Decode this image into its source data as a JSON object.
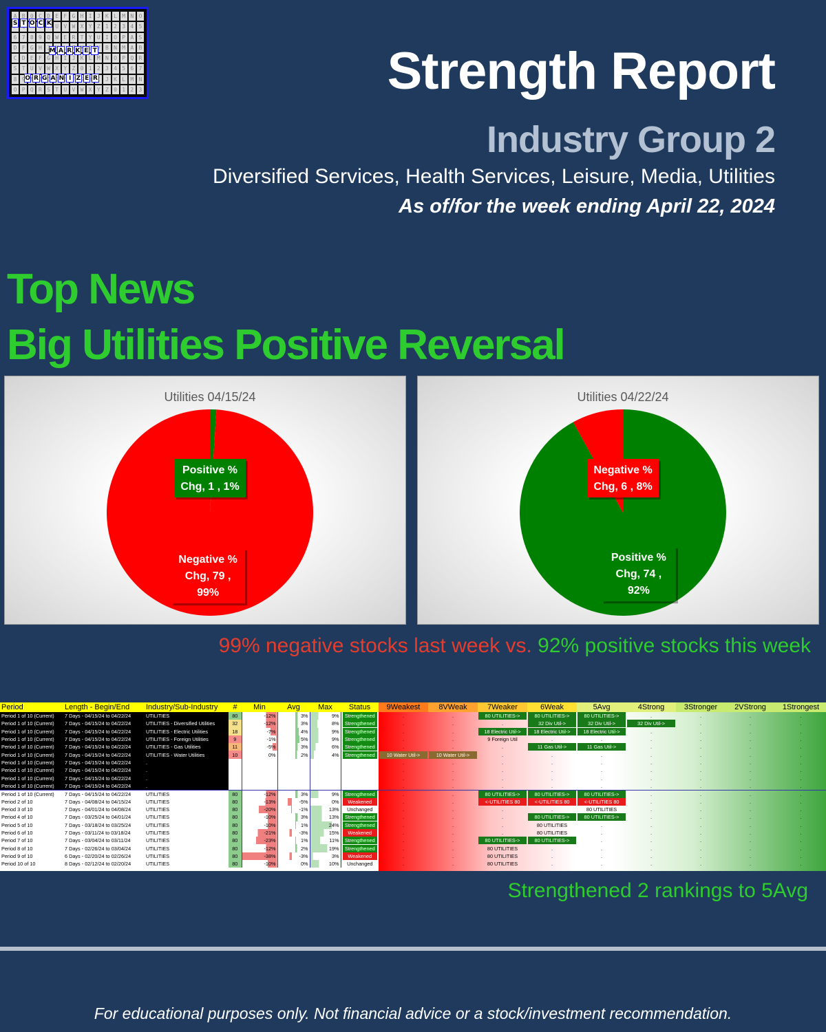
{
  "logo": {
    "words": [
      [
        "S",
        "T",
        "O",
        "C",
        "K"
      ],
      [
        "M",
        "A",
        "R",
        "K",
        "E",
        "T"
      ],
      [
        "O",
        "R",
        "G",
        "A",
        "N",
        "I",
        "Z",
        "E",
        "R"
      ]
    ],
    "filler": "AB0CDEFGHIJKLMNOPQRSTUVWXYZ123456789QWERTYUIOPASDFGHJKLZXCVBNMABCDEFGHIJKLMNOPQRSTUVWXYZ0123456789ABCDEFGHIJKLMNOPQRSTUVWXYZ0123"
  },
  "header": {
    "title": "Strength Report",
    "subtitle": "Industry Group 2",
    "groups": "Diversified Services, Health Services, Leisure, Media, Utilities",
    "as_of": "As of/for the week ending April 22, 2024"
  },
  "news": {
    "label": "Top News",
    "headline": "Big Utilities Positive Reversal"
  },
  "colors": {
    "positive": "#008000",
    "negative": "#ff0000"
  },
  "chart_data": [
    {
      "type": "pie",
      "title": "Utilities 04/15/24",
      "slices": [
        {
          "name": "Positive % Chg",
          "count": 1,
          "percent": 1,
          "color": "#008000",
          "label_lines": [
            "Positive %",
            "Chg,  1 , 1%"
          ]
        },
        {
          "name": "Negative % Chg",
          "count": 79,
          "percent": 99,
          "color": "#ff0000",
          "label_lines": [
            "Negative %",
            "Chg,  79 ,",
            "99%"
          ]
        }
      ]
    },
    {
      "type": "pie",
      "title": "Utilities 04/22/24",
      "slices": [
        {
          "name": "Positive % Chg",
          "count": 74,
          "percent": 92,
          "color": "#008000",
          "label_lines": [
            "Positive %",
            "Chg,  74 ,",
            "92%"
          ]
        },
        {
          "name": "Negative % Chg",
          "count": 6,
          "percent": 8,
          "color": "#ff0000",
          "label_lines": [
            "Negative %",
            "Chg,  6 , 8%"
          ]
        }
      ]
    }
  ],
  "comparison": {
    "negative": "99% negative stocks last week vs.",
    "positive": "92% positive stocks this week"
  },
  "table": {
    "headers": [
      "Period",
      "Length - Begin/End",
      "Industry/Sub-Industry",
      "#",
      "Min",
      "Avg",
      "Max",
      "Status",
      "9Weakest",
      "8VWeak",
      "7Weaker",
      "6Weak",
      "5Avg",
      "4Strong",
      "3Stronger",
      "2VStrong",
      "1Strongest"
    ],
    "rows": [
      {
        "period": "Period 1 of 10 (Current)",
        "length": "7 Days - 04/15/24 to 04/22/24",
        "industry": "UTILITIES",
        "count": "80",
        "min": "-12%",
        "avg": "3%",
        "max": "9%",
        "status": "Strengthened",
        "ranks": [
          "",
          "",
          "80 UTILITIES->",
          "80 UTILITIES->",
          "80 UTILITIES->",
          "",
          "",
          "",
          ""
        ],
        "kinds": [
          "",
          "",
          "g",
          "g",
          "g",
          "",
          "",
          "",
          ""
        ]
      },
      {
        "period": "Period 1 of 10 (Current)",
        "length": "7 Days - 04/15/24 to 04/22/24",
        "industry": "UTILITIES - Diversified Utilities",
        "count": "32",
        "min": "-12%",
        "avg": "3%",
        "max": "8%",
        "status": "Strengthened",
        "ranks": [
          "",
          "",
          "",
          "32 Div Util->",
          "32 Div Util->",
          "32 Div Util->",
          "",
          "",
          ""
        ],
        "kinds": [
          "",
          "",
          "",
          "g",
          "g",
          "g",
          "",
          "",
          ""
        ]
      },
      {
        "period": "Period 1 of 10 (Current)",
        "length": "7 Days - 04/15/24 to 04/22/24",
        "industry": "UTILITIES - Electric Utilities",
        "count": "18",
        "min": "-7%",
        "avg": "4%",
        "max": "9%",
        "status": "Strengthened",
        "ranks": [
          "",
          "",
          "18 Electric Util->",
          "18 Electric Util->",
          "18 Electric Util->",
          "",
          "",
          "",
          ""
        ],
        "kinds": [
          "",
          "",
          "g",
          "g",
          "g",
          "",
          "",
          "",
          ""
        ]
      },
      {
        "period": "Period 1 of 10 (Current)",
        "length": "7 Days - 04/15/24 to 04/22/24",
        "industry": "UTILITIES - Foreign Utilities",
        "count": "9",
        "min": "-1%",
        "avg": "5%",
        "max": "9%",
        "status": "Strengthened",
        "ranks": [
          "",
          "",
          "9 Foreign Util",
          "",
          "",
          "",
          "",
          "",
          ""
        ],
        "kinds": [
          "",
          "",
          "",
          "",
          "",
          "",
          "",
          "",
          ""
        ]
      },
      {
        "period": "Period 1 of 10 (Current)",
        "length": "7 Days - 04/15/24 to 04/22/24",
        "industry": "UTILITIES - Gas Utilities",
        "count": "11",
        "min": "-5%",
        "avg": "3%",
        "max": "6%",
        "status": "Strengthened",
        "ranks": [
          "",
          "",
          "",
          "11 Gas Util->",
          "11 Gas Util->",
          "",
          "",
          "",
          ""
        ],
        "kinds": [
          "",
          "",
          "",
          "g",
          "g",
          "",
          "",
          "",
          ""
        ]
      },
      {
        "period": "Period 1 of 10 (Current)",
        "length": "7 Days - 04/15/24 to 04/22/24",
        "industry": "UTILITIES - Water Utilities",
        "count": "10",
        "min": "0%",
        "avg": "2%",
        "max": "4%",
        "status": "Strengthened",
        "ranks": [
          "10 Water Util->",
          "10 Water Util->",
          "",
          "",
          "",
          "",
          "",
          "",
          ""
        ],
        "kinds": [
          "o",
          "o",
          "",
          "",
          "",
          "",
          "",
          "",
          ""
        ]
      },
      {
        "period": "Period 1 of 10 (Current)",
        "length": "7 Days - 04/15/24 to 04/22/24",
        "industry": ".",
        "count": "",
        "min": "",
        "avg": "",
        "max": "",
        "status": "",
        "ranks": [
          "",
          "",
          "",
          "",
          "",
          "",
          "",
          "",
          ""
        ],
        "kinds": [
          "",
          "",
          "",
          "",
          "",
          "",
          "",
          "",
          ""
        ]
      },
      {
        "period": "Period 1 of 10 (Current)",
        "length": "7 Days - 04/15/24 to 04/22/24",
        "industry": ".",
        "count": "",
        "min": "",
        "avg": "",
        "max": "",
        "status": "",
        "ranks": [
          "",
          "",
          "",
          "",
          "",
          "",
          "",
          "",
          ""
        ],
        "kinds": [
          "",
          "",
          "",
          "",
          "",
          "",
          "",
          "",
          ""
        ]
      },
      {
        "period": "Period 1 of 10 (Current)",
        "length": "7 Days - 04/15/24 to 04/22/24",
        "industry": ".",
        "count": "",
        "min": "",
        "avg": "",
        "max": "",
        "status": "",
        "ranks": [
          "",
          "",
          "",
          "",
          "",
          "",
          "",
          "",
          ""
        ],
        "kinds": [
          "",
          "",
          "",
          "",
          "",
          "",
          "",
          "",
          ""
        ]
      },
      {
        "period": "Period 1 of 10 (Current)",
        "length": "7 Days - 04/15/24 to 04/22/24",
        "industry": ".",
        "count": "",
        "min": "",
        "avg": "",
        "max": "",
        "status": "",
        "ranks": [
          "",
          "",
          "",
          "",
          "",
          "",
          "",
          "",
          ""
        ],
        "kinds": [
          "",
          "",
          "",
          "",
          "",
          "",
          "",
          "",
          ""
        ]
      },
      {
        "period": "Period 1 of 10 (Current)",
        "length": "7 Days - 04/15/24 to 04/22/24",
        "industry": "UTILITIES",
        "count": "80",
        "min": "-12%",
        "avg": "3%",
        "max": "9%",
        "status": "Strengthened",
        "ranks": [
          "",
          "",
          "80 UTILITIES->",
          "80 UTILITIES->",
          "80 UTILITIES->",
          "",
          "",
          "",
          ""
        ],
        "kinds": [
          "",
          "",
          "g",
          "g",
          "g",
          "",
          "",
          "",
          ""
        ]
      },
      {
        "period": "Period 2 of 10",
        "length": "7 Days - 04/08/24 to 04/15/24",
        "industry": "UTILITIES",
        "count": "80",
        "min": "-13%",
        "avg": "-5%",
        "max": "0%",
        "status": "Weakened",
        "ranks": [
          "",
          "",
          "<-UTILITIES 80",
          "<-UTILITIES 80",
          "<-UTILITIES 80",
          "",
          "",
          "",
          ""
        ],
        "kinds": [
          "",
          "",
          "r",
          "r",
          "r",
          "",
          "",
          "",
          ""
        ]
      },
      {
        "period": "Period 3 of 10",
        "length": "7 Days - 04/01/24 to 04/08/24",
        "industry": "UTILITIES",
        "count": "80",
        "min": "-20%",
        "avg": "-1%",
        "max": "13%",
        "status": "Unchanged",
        "ranks": [
          "",
          "",
          "",
          "",
          "80 UTILITIES",
          "",
          "",
          "",
          ""
        ],
        "kinds": [
          "",
          "",
          "",
          "",
          "",
          "",
          "",
          "",
          ""
        ]
      },
      {
        "period": "Period 4 of 10",
        "length": "7 Days - 03/25/24 to 04/01/24",
        "industry": "UTILITIES",
        "count": "80",
        "min": "-10%",
        "avg": "3%",
        "max": "13%",
        "status": "Strengthened",
        "ranks": [
          "",
          "",
          "",
          "80 UTILITIES->",
          "80 UTILITIES->",
          "",
          "",
          "",
          ""
        ],
        "kinds": [
          "",
          "",
          "",
          "g",
          "g",
          "",
          "",
          "",
          ""
        ]
      },
      {
        "period": "Period 5 of 10",
        "length": "7 Days - 03/18/24 to 03/25/24",
        "industry": "UTILITIES",
        "count": "80",
        "min": "-10%",
        "avg": "1%",
        "max": "24%",
        "status": "Strengthened",
        "ranks": [
          "",
          "",
          "",
          "80 UTILITIES",
          "",
          "",
          "",
          "",
          ""
        ],
        "kinds": [
          "",
          "",
          "",
          "",
          "",
          "",
          "",
          "",
          ""
        ]
      },
      {
        "period": "Period 6 of 10",
        "length": "7 Days - 03/11/24 to 03/18/24",
        "industry": "UTILITIES",
        "count": "80",
        "min": "-21%",
        "avg": "-3%",
        "max": "15%",
        "status": "Weakened",
        "ranks": [
          "",
          "",
          "",
          "80 UTILITIES",
          "",
          "",
          "",
          "",
          ""
        ],
        "kinds": [
          "",
          "",
          "",
          "",
          "",
          "",
          "",
          "",
          ""
        ]
      },
      {
        "period": "Period 7 of 10",
        "length": "7 Days - 03/04/24 to 03/11/24",
        "industry": "UTILITIES",
        "count": "80",
        "min": "-23%",
        "avg": "1%",
        "max": "11%",
        "status": "Strengthened",
        "ranks": [
          "",
          "",
          "80 UTILITIES->",
          "80 UTILITIES->",
          "",
          "",
          "",
          "",
          ""
        ],
        "kinds": [
          "",
          "",
          "g",
          "g",
          "",
          "",
          "",
          "",
          ""
        ]
      },
      {
        "period": "Period 8 of 10",
        "length": "7 Days - 02/26/24 to 03/04/24",
        "industry": "UTILITIES",
        "count": "80",
        "min": "-12%",
        "avg": "2%",
        "max": "19%",
        "status": "Strengthened",
        "ranks": [
          "",
          "",
          "80 UTILITIES",
          "",
          "",
          "",
          "",
          "",
          ""
        ],
        "kinds": [
          "",
          "",
          "",
          "",
          "",
          "",
          "",
          "",
          ""
        ]
      },
      {
        "period": "Period 9 of 10",
        "length": "6 Days - 02/20/24 to 02/26/24",
        "industry": "UTILITIES",
        "count": "80",
        "min": "-38%",
        "avg": "-3%",
        "max": "3%",
        "status": "Weakened",
        "ranks": [
          "",
          "",
          "80 UTILITIES",
          "",
          "",
          "",
          "",
          "",
          ""
        ],
        "kinds": [
          "",
          "",
          "",
          "",
          "",
          "",
          "",
          "",
          ""
        ]
      },
      {
        "period": "Period 10 of 10",
        "length": "8 Days - 02/12/24 to 02/20/24",
        "industry": "UTILITIES",
        "count": "80",
        "min": "-10%",
        "avg": "0%",
        "max": "10%",
        "status": "Unchanged",
        "ranks": [
          "",
          "",
          "80 UTILITIES",
          "",
          "",
          "",
          "",
          "",
          ""
        ],
        "kinds": [
          "",
          "",
          "",
          "",
          "",
          "",
          "",
          "",
          ""
        ]
      }
    ]
  },
  "strength_note": "Strengthened 2 rankings to 5Avg",
  "disclaimer": "For educational purposes only. Not financial advice or a stock/investment recommendation."
}
